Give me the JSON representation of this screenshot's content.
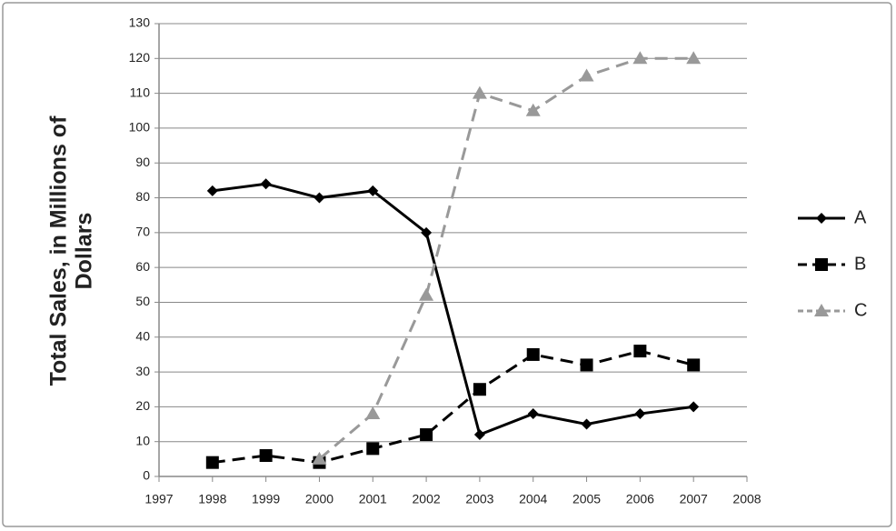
{
  "chart_data": {
    "type": "line",
    "ylabel": [
      "Total Sales, in Millions of",
      "Dollars"
    ],
    "x": [
      1998,
      1999,
      2000,
      2001,
      2002,
      2003,
      2004,
      2005,
      2006,
      2007
    ],
    "series": [
      {
        "name": "A",
        "color": "#000000",
        "line_style": "solid",
        "marker": "diamond",
        "values": [
          82,
          84,
          80,
          82,
          70,
          12,
          18,
          15,
          18,
          20
        ]
      },
      {
        "name": "B",
        "color": "#000000",
        "line_style": "dashed",
        "marker": "square",
        "values": [
          4,
          6,
          4,
          8,
          12,
          25,
          35,
          32,
          36,
          32
        ]
      },
      {
        "name": "C",
        "color": "#999999",
        "line_style": "dashed",
        "marker": "triangle",
        "values": [
          null,
          null,
          5,
          18,
          52,
          110,
          105,
          115,
          120,
          120
        ]
      }
    ],
    "xlim": [
      1997,
      2008
    ],
    "xticks": [
      1997,
      1998,
      1999,
      2000,
      2001,
      2002,
      2003,
      2004,
      2005,
      2006,
      2007,
      2008
    ],
    "ylim": [
      0,
      130
    ],
    "yticks": [
      0,
      10,
      20,
      30,
      40,
      50,
      60,
      70,
      80,
      90,
      100,
      110,
      120,
      130
    ],
    "grid": true,
    "legend": "right"
  }
}
